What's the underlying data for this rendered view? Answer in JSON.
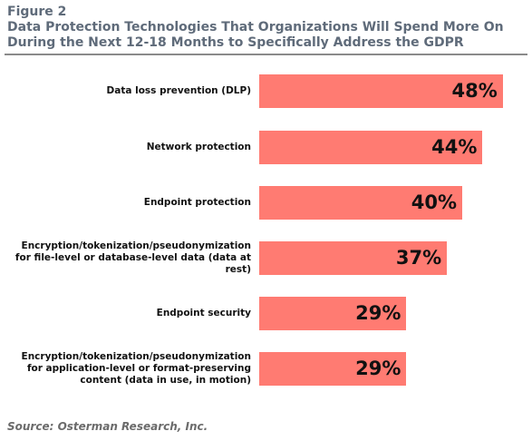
{
  "figure": {
    "label": "Figure 2",
    "title_line1": "Data Protection Technologies That Organizations Will Spend More On",
    "title_line2": "During the Next 12-18 Months to Specifically Address the GDPR"
  },
  "source": "Source: Osterman Research, Inc.",
  "colors": {
    "bar": "#ff7b72",
    "title": "#5f6b7a"
  },
  "chart_data": {
    "type": "bar",
    "orientation": "horizontal",
    "categories": [
      "Data loss prevention (DLP)",
      "Network protection",
      "Endpoint protection",
      "Encryption/tokenization/pseudonymization for file-level or database-level data (data at rest)",
      "Endpoint security",
      "Encryption/tokenization/pseudonymization for application-level or format-preserving content (data in use, in motion)"
    ],
    "values": [
      48,
      44,
      40,
      37,
      29,
      29
    ],
    "value_labels": [
      "48%",
      "44%",
      "40%",
      "37%",
      "29%",
      "29%"
    ],
    "unit": "%",
    "grid": false,
    "legend": false
  }
}
